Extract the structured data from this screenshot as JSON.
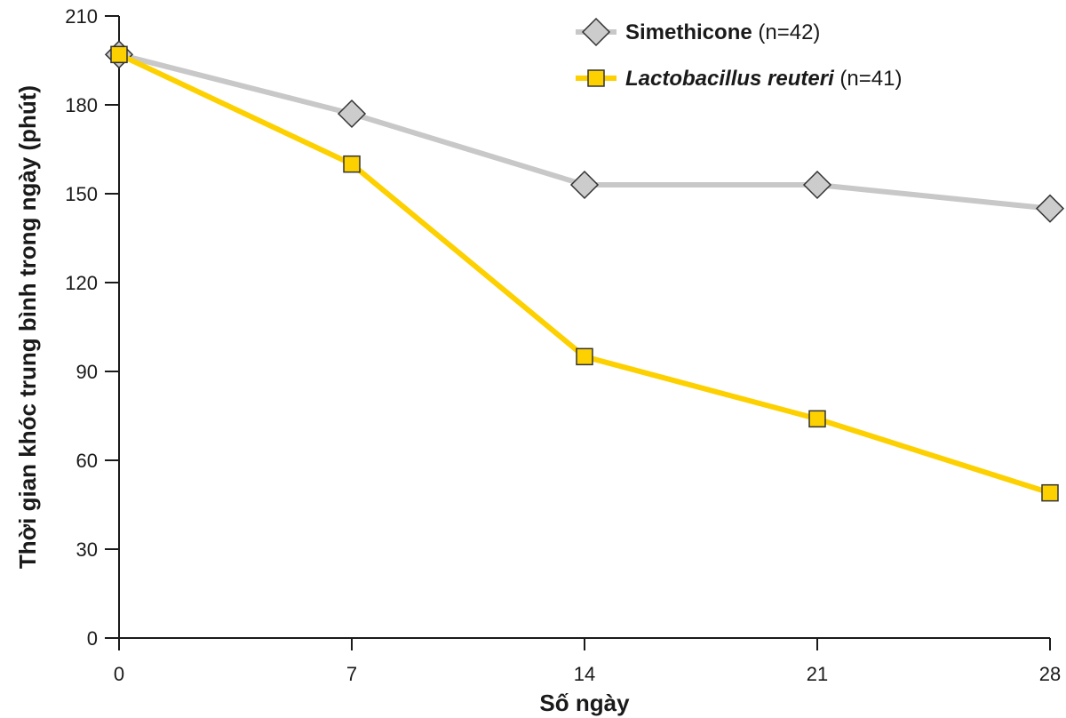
{
  "chart_data": {
    "type": "line",
    "xlabel": "Số ngày",
    "ylabel": "Thời gian khóc trung bình trong ngày (phút)",
    "x": [
      0,
      7,
      14,
      21,
      28
    ],
    "xticks": [
      "0",
      "7",
      "14",
      "21",
      "28"
    ],
    "yticks": [
      "0",
      "30",
      "60",
      "90",
      "120",
      "150",
      "180",
      "210"
    ],
    "xlim": [
      0,
      28
    ],
    "ylim": [
      0,
      210
    ],
    "grid": false,
    "legend_position": "top-right",
    "series": [
      {
        "name": "Simethicone",
        "n_label": "(n=42)",
        "italic": false,
        "marker": "diamond",
        "line_color": "#c8c8c8",
        "marker_fill": "#cccccc",
        "values": [
          197,
          177,
          153,
          153,
          145
        ]
      },
      {
        "name": "Lactobacillus reuteri",
        "n_label": "(n=41)",
        "italic": true,
        "marker": "square",
        "line_color": "#fdd000",
        "marker_fill": "#fdd000",
        "values": [
          197,
          160,
          95,
          74,
          49
        ]
      }
    ]
  }
}
